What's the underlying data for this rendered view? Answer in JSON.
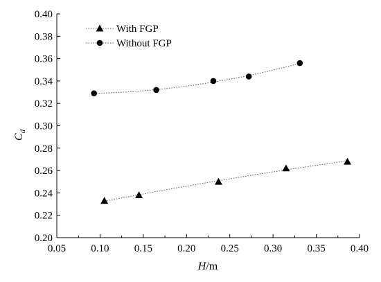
{
  "chart_data": {
    "type": "scatter",
    "xlabel": "H/m",
    "ylabel": "C_d",
    "xlim": [
      0.05,
      0.4
    ],
    "ylim": [
      0.2,
      0.4
    ],
    "x_ticks": [
      "0.05",
      "0.10",
      "0.15",
      "0.20",
      "0.25",
      "0.30",
      "0.35",
      "0.40"
    ],
    "y_ticks": [
      "0.20",
      "0.22",
      "0.24",
      "0.26",
      "0.28",
      "0.30",
      "0.32",
      "0.34",
      "0.36",
      "0.38",
      "0.40"
    ],
    "legend_position": "top-left",
    "grid": false,
    "series": [
      {
        "name": "With FGP",
        "marker": "triangle",
        "color": "#000000",
        "points": [
          {
            "x": 0.105,
            "y": 0.233
          },
          {
            "x": 0.145,
            "y": 0.238
          },
          {
            "x": 0.237,
            "y": 0.25
          },
          {
            "x": 0.315,
            "y": 0.262
          },
          {
            "x": 0.386,
            "y": 0.268
          }
        ]
      },
      {
        "name": "Without FGP",
        "marker": "circle",
        "color": "#000000",
        "points": [
          {
            "x": 0.093,
            "y": 0.329
          },
          {
            "x": 0.165,
            "y": 0.332
          },
          {
            "x": 0.231,
            "y": 0.34
          },
          {
            "x": 0.272,
            "y": 0.344
          },
          {
            "x": 0.331,
            "y": 0.356
          }
        ]
      }
    ]
  }
}
